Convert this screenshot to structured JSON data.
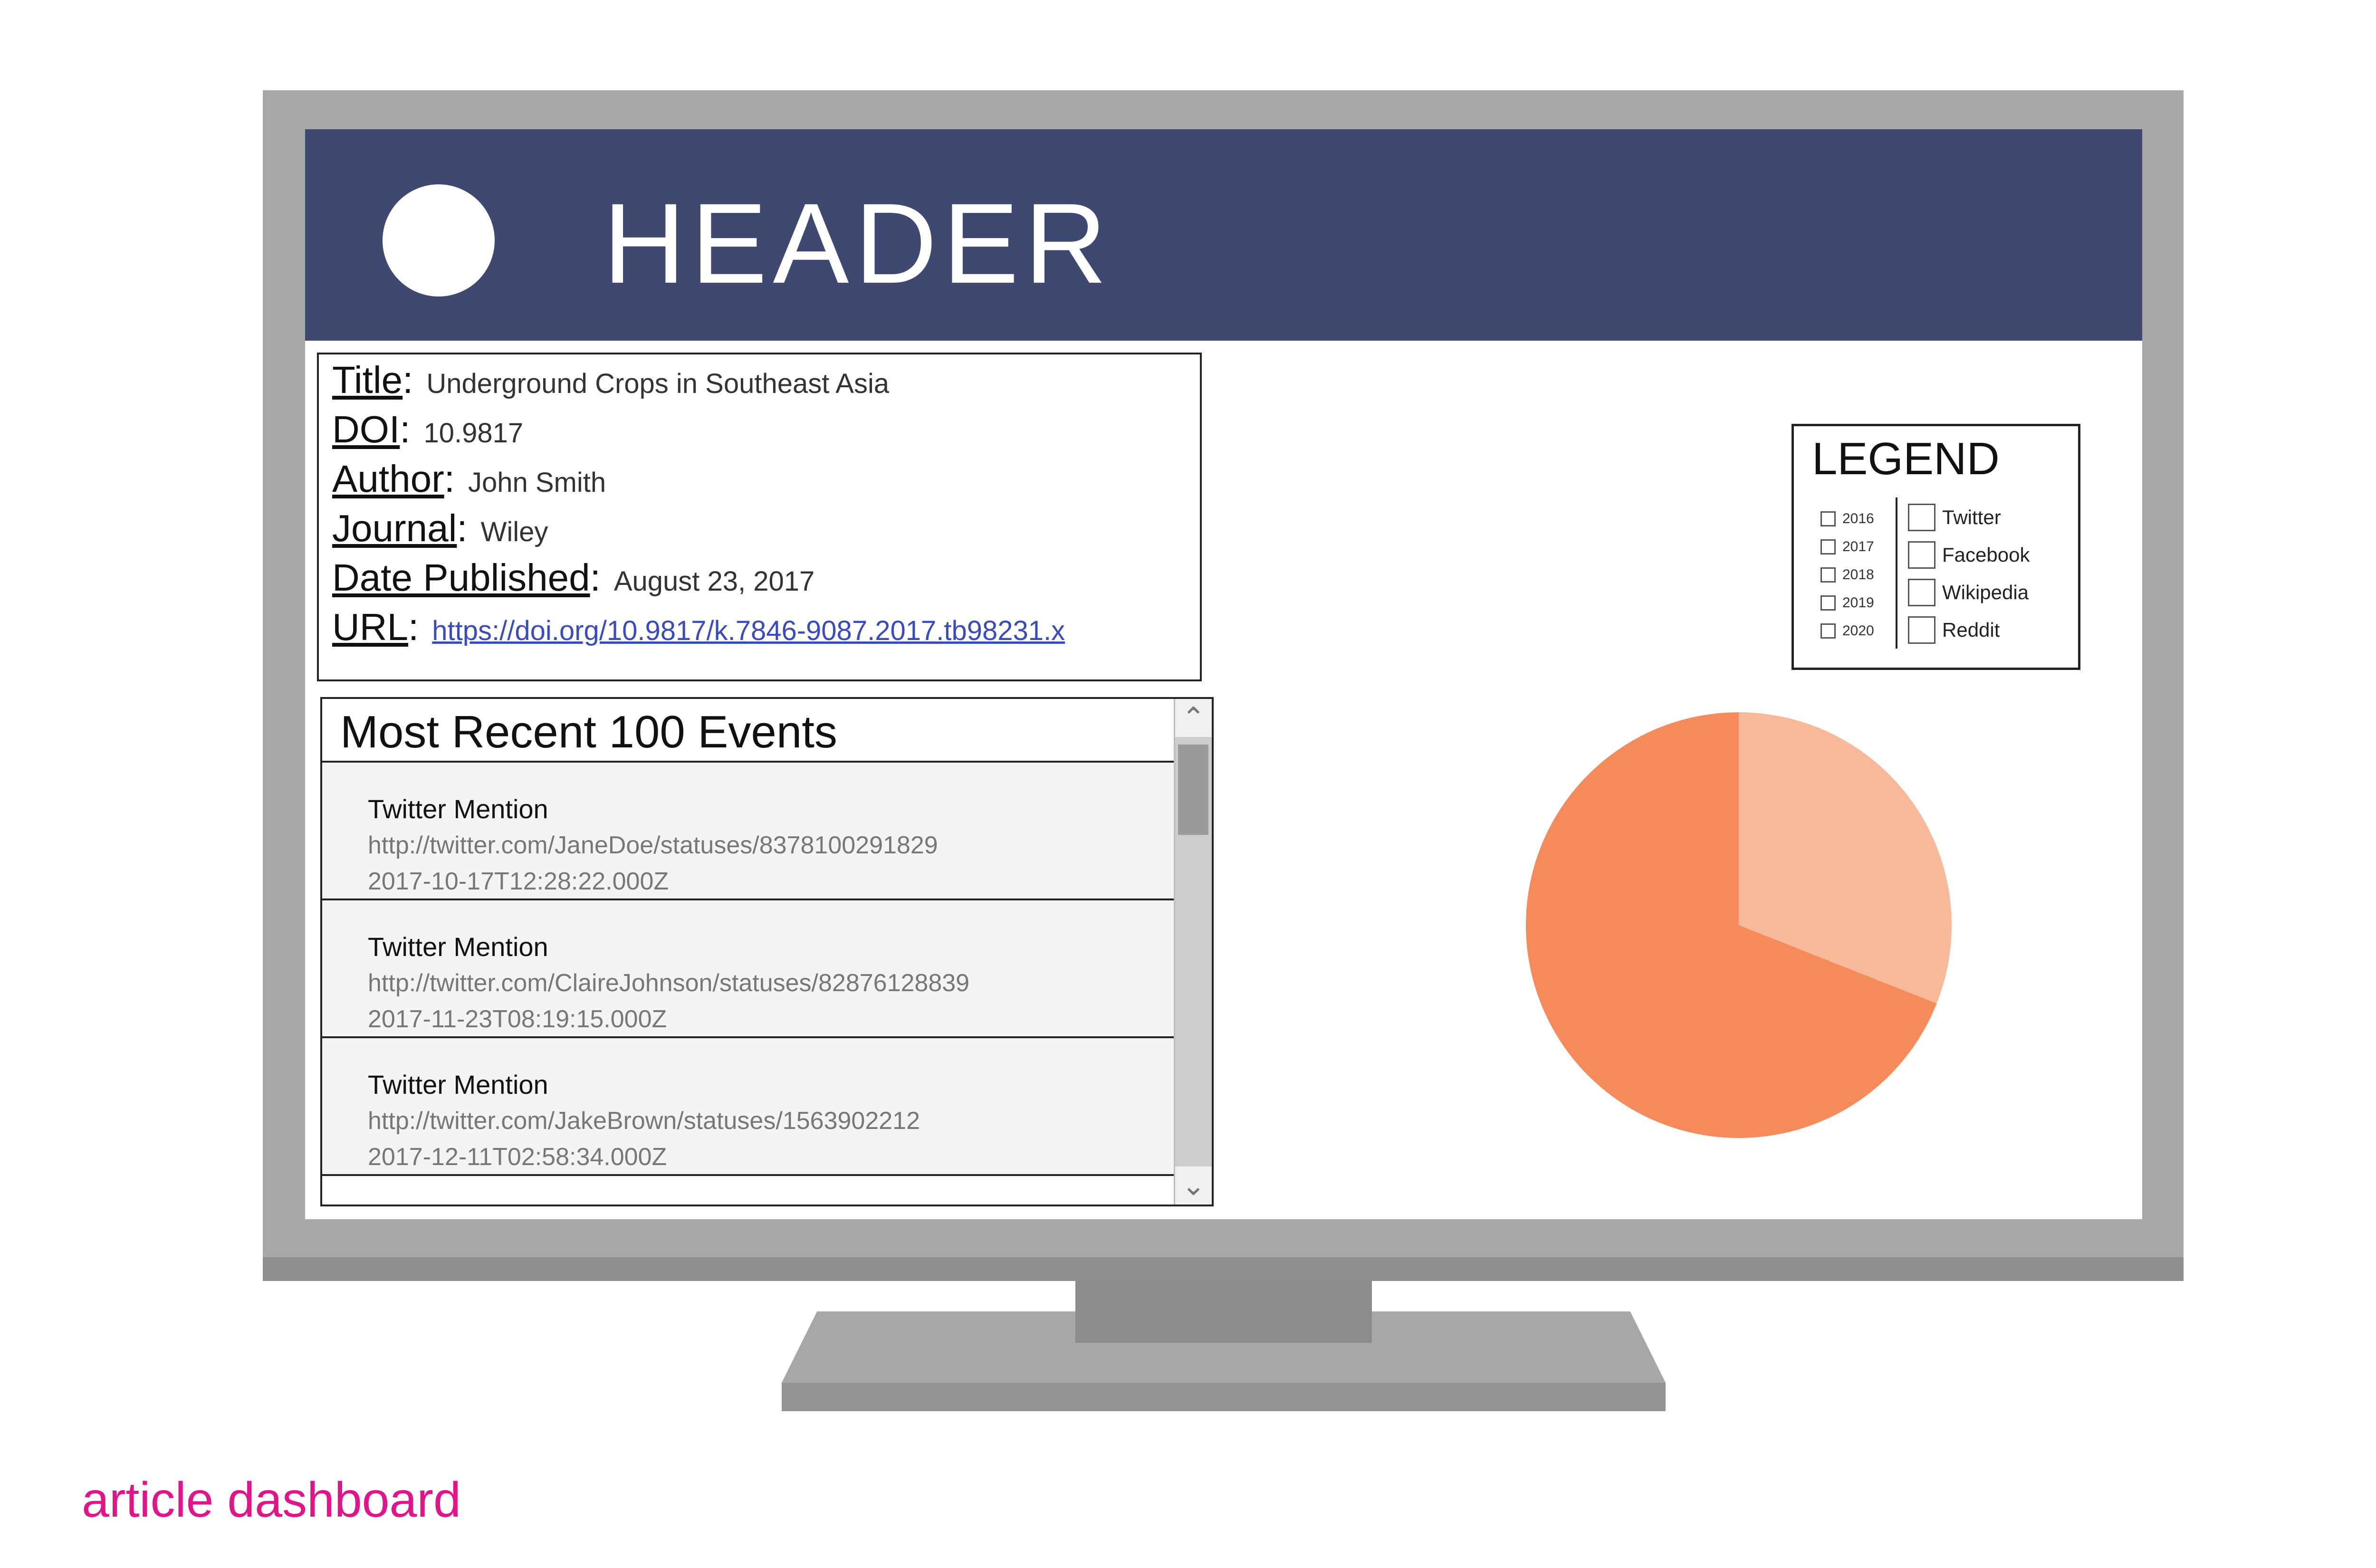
{
  "header": {
    "title": "HEADER"
  },
  "article": {
    "title_label": "Title",
    "title": "Underground Crops in Southeast Asia",
    "doi_label": "DOI",
    "doi": "10.9817",
    "author_label": "Author",
    "author": "John Smith",
    "journal_label": "Journal",
    "journal": "Wiley",
    "date_label": "Date Published",
    "date": "August 23, 2017",
    "url_label": "URL",
    "url": "https://doi.org/10.9817/k.7846-9087.2017.tb98231.x",
    "colon": ":"
  },
  "events": {
    "title": "Most Recent 100 Events",
    "items": [
      {
        "type": "Twitter Mention",
        "url": "http://twitter.com/JaneDoe/statuses/8378100291829",
        "time": "2017-10-17T12:28:22.000Z"
      },
      {
        "type": "Twitter Mention",
        "url": "http://twitter.com/ClaireJohnson/statuses/82876128839",
        "time": "2017-11-23T08:19:15.000Z"
      },
      {
        "type": "Twitter Mention",
        "url": "http://twitter.com/JakeBrown/statuses/1563902212",
        "time": "2017-12-11T02:58:34.000Z"
      }
    ],
    "scroll_up_icon": "chevron-up-icon",
    "scroll_down_icon": "chevron-down-icon"
  },
  "legend": {
    "title": "LEGEND",
    "years": [
      "2016",
      "2017",
      "2018",
      "2019",
      "2020"
    ],
    "sources": [
      "Twitter",
      "Facebook",
      "Wikipedia",
      "Reddit"
    ]
  },
  "chart_data": {
    "type": "pie",
    "values": [
      0.31,
      0.69
    ],
    "colors": [
      "#f8b89a",
      "#f58a5b"
    ],
    "start": "top, clockwise"
  },
  "caption": "article dashboard",
  "colors": {
    "header_bg": "#3e4870",
    "link": "#3a4bc0",
    "caption": "#e0158a",
    "bezel": "#a8a8a8"
  }
}
